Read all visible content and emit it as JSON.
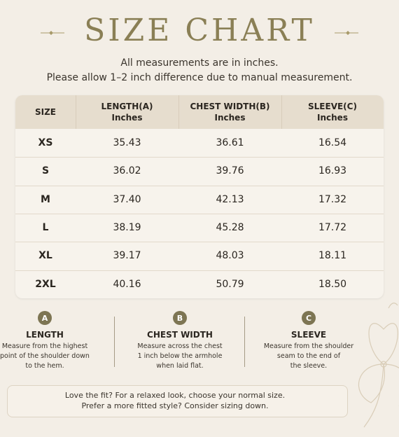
{
  "header": {
    "title": "SIZE CHART",
    "subtitle_lines": [
      "All measurements are in inches.",
      "Please allow 1–2 inch difference due to manual measurement."
    ]
  },
  "table": {
    "columns": [
      [
        "SIZE"
      ],
      [
        "LENGTH(A)",
        "Inches"
      ],
      [
        "CHEST WIDTH(B)",
        "Inches"
      ],
      [
        "SLEEVE(C)",
        "Inches"
      ]
    ],
    "rows": [
      [
        "XS",
        "35.43",
        "36.61",
        "16.54"
      ],
      [
        "S",
        "36.02",
        "39.76",
        "16.93"
      ],
      [
        "M",
        "37.40",
        "42.13",
        "17.32"
      ],
      [
        "L",
        "38.19",
        "45.28",
        "17.72"
      ],
      [
        "XL",
        "39.17",
        "48.03",
        "18.11"
      ],
      [
        "2XL",
        "40.16",
        "50.79",
        "18.50"
      ]
    ]
  },
  "notes": [
    {
      "badge": "A",
      "title": "LENGTH",
      "lines": [
        "Measure from the highest",
        "point of the shoulder down",
        "to the hem."
      ]
    },
    {
      "badge": "B",
      "title": "CHEST WIDTH",
      "lines": [
        "Measure across the chest",
        "1 inch below the armhole",
        "when laid flat."
      ]
    },
    {
      "badge": "C",
      "title": "SLEEVE",
      "lines": [
        "Measure from the shoulder",
        "seam to the end of",
        "the sleeve."
      ]
    }
  ],
  "footer": {
    "lines": [
      "Love the fit? For a relaxed look, choose your normal size.",
      "Prefer a more fitted style? Consider sizing down."
    ]
  }
}
